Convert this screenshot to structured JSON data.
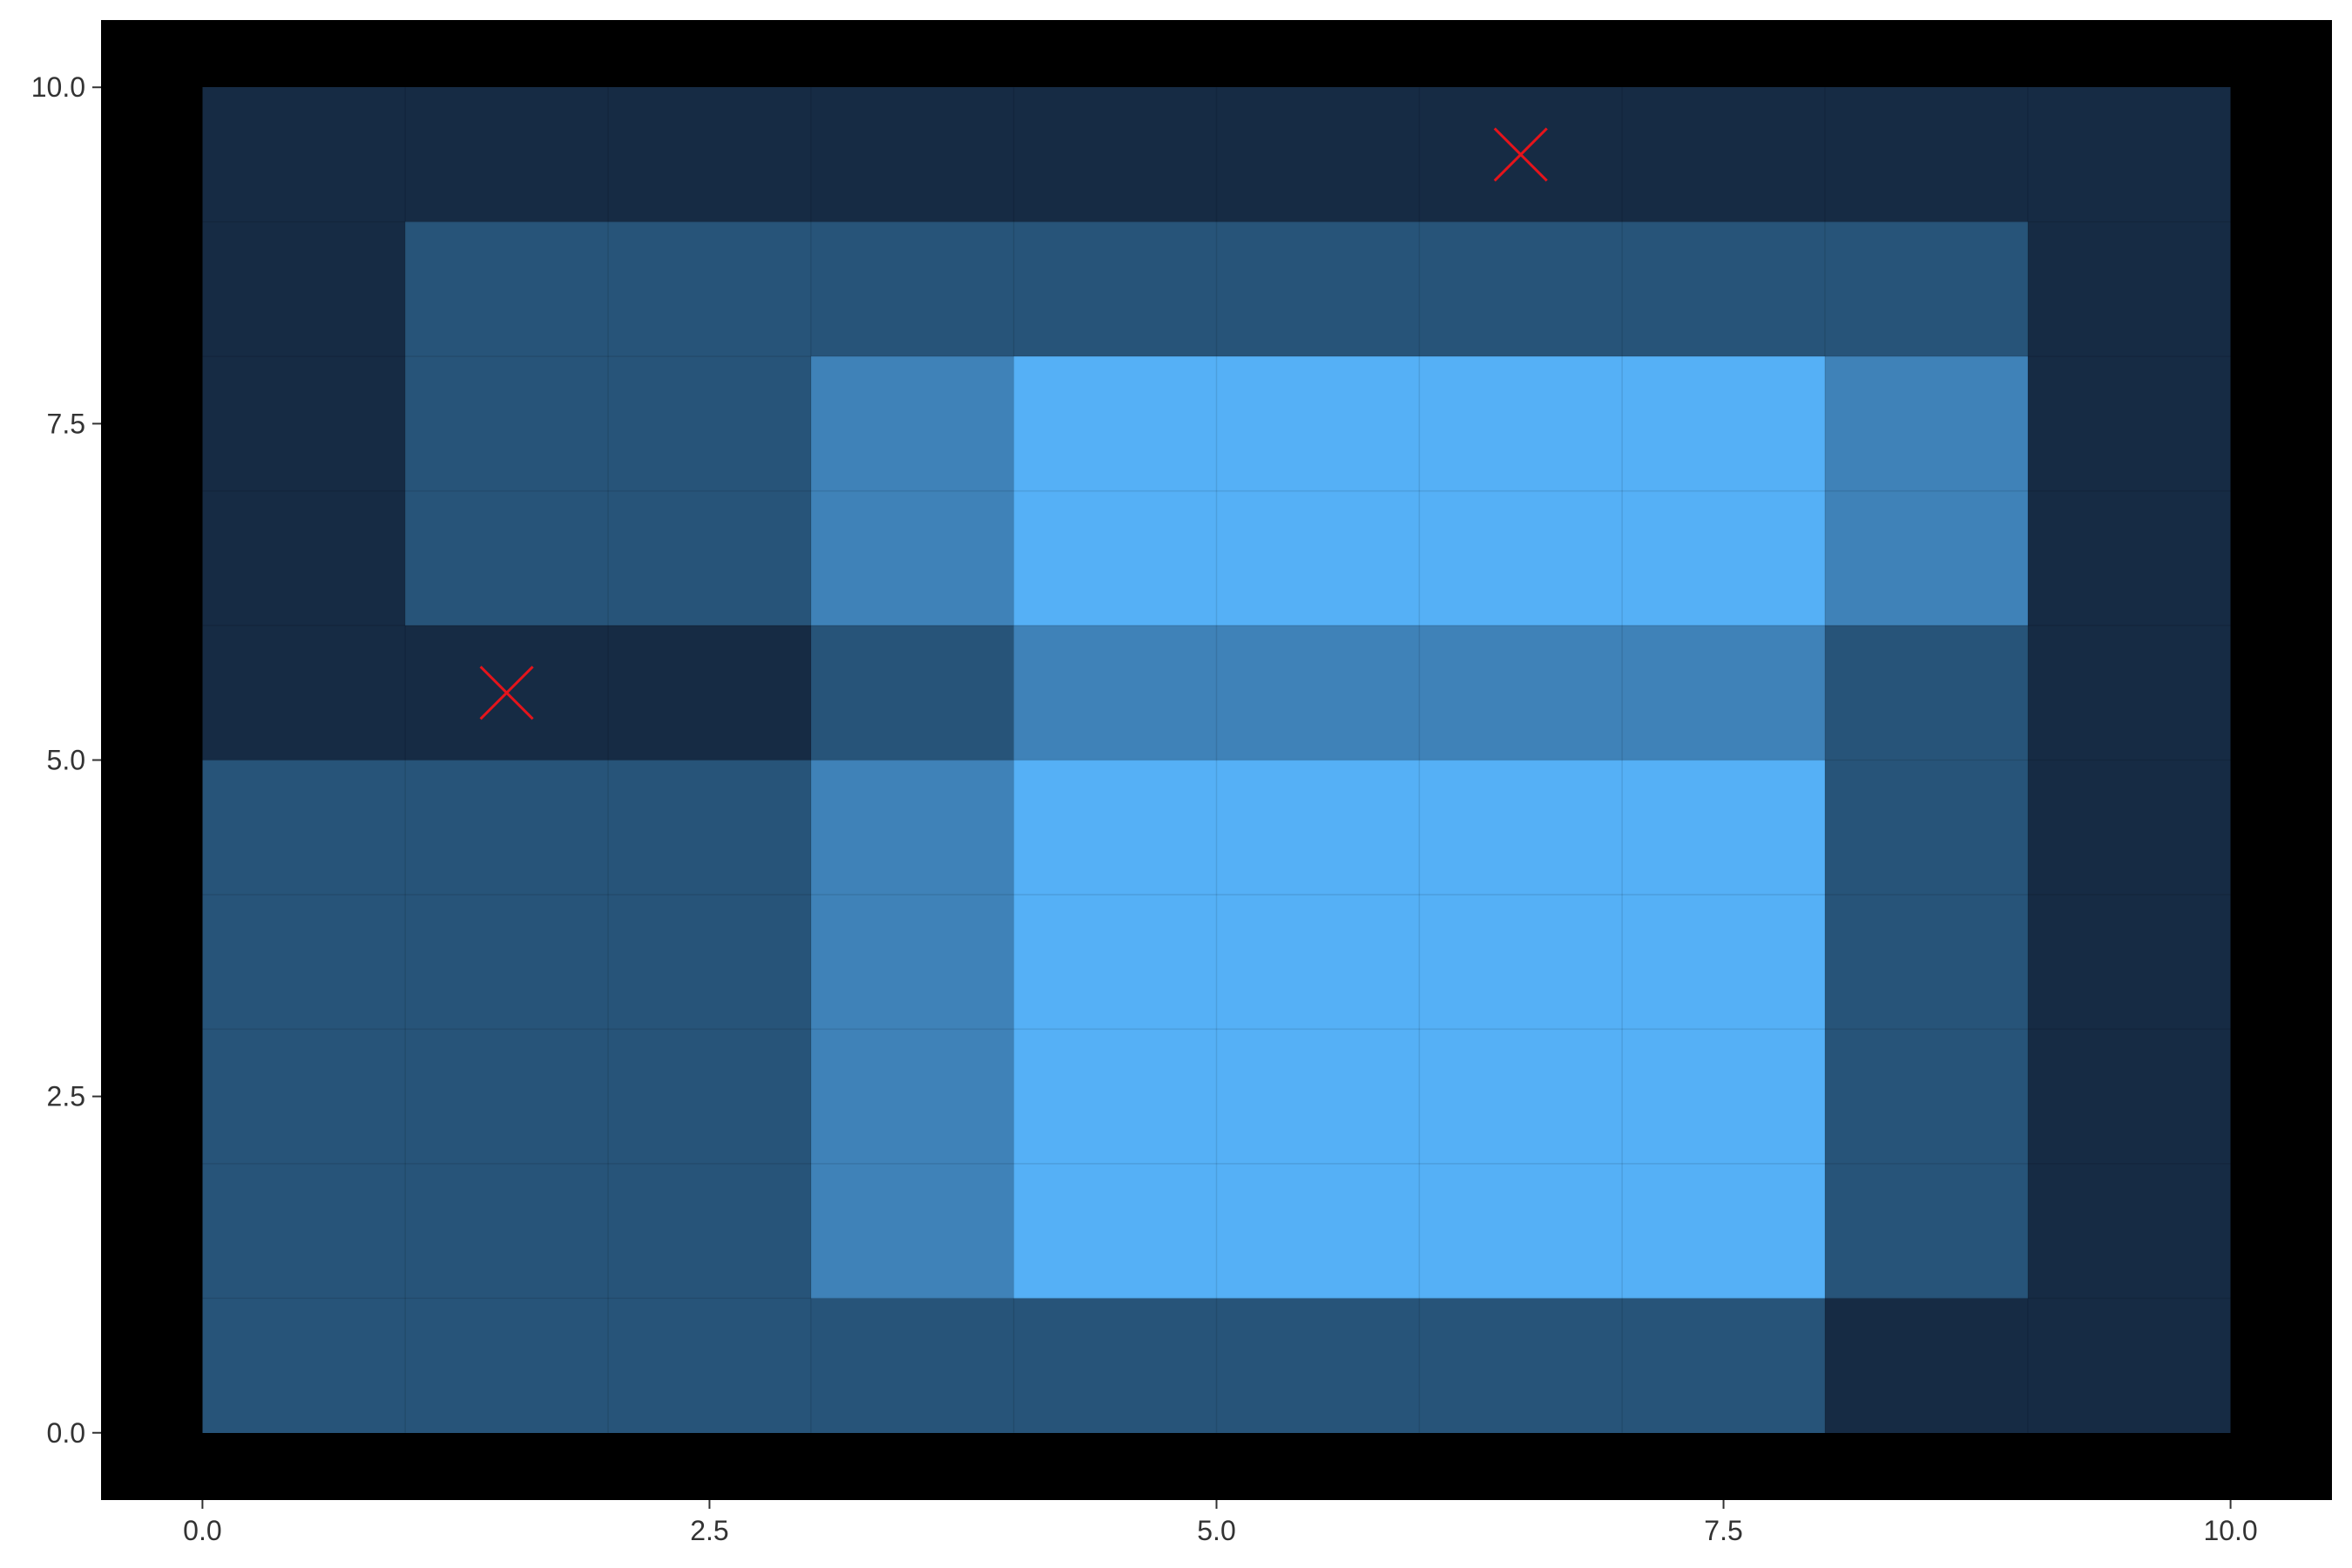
{
  "chart_data": {
    "type": "heatmap",
    "title": "",
    "xlabel": "",
    "ylabel": "",
    "xlim": [
      -0.5,
      10.5
    ],
    "ylim": [
      -0.5,
      10.5
    ],
    "x_ticks": [
      0.0,
      2.5,
      5.0,
      7.5,
      10.0
    ],
    "y_ticks": [
      0.0,
      2.5,
      5.0,
      7.5,
      10.0
    ],
    "x_tick_labels": [
      "0.0",
      "2.5",
      "5.0",
      "7.5",
      "10.0"
    ],
    "y_tick_labels": [
      "0.0",
      "2.5",
      "5.0",
      "7.5",
      "10.0"
    ],
    "grid": false,
    "cell_x_range": [
      0,
      10
    ],
    "cell_y_range": [
      0,
      10
    ],
    "levels_rows_top_to_bottom": [
      [
        0,
        0,
        0,
        0,
        0,
        0,
        0,
        0,
        0,
        0
      ],
      [
        0,
        1,
        1,
        1,
        1,
        1,
        1,
        1,
        1,
        0
      ],
      [
        0,
        1,
        1,
        2,
        3,
        3,
        3,
        3,
        2,
        0
      ],
      [
        0,
        1,
        1,
        2,
        3,
        3,
        3,
        3,
        2,
        0
      ],
      [
        0,
        0,
        0,
        1,
        2,
        2,
        2,
        2,
        1,
        0
      ],
      [
        1,
        1,
        1,
        2,
        3,
        3,
        3,
        3,
        1,
        0
      ],
      [
        1,
        1,
        1,
        2,
        3,
        3,
        3,
        3,
        1,
        0
      ],
      [
        1,
        1,
        1,
        2,
        3,
        3,
        3,
        3,
        1,
        0
      ],
      [
        1,
        1,
        1,
        2,
        3,
        3,
        3,
        3,
        1,
        0
      ],
      [
        1,
        1,
        1,
        1,
        1,
        1,
        1,
        1,
        0,
        0
      ]
    ],
    "level_colors": [
      "#162b44",
      "#275479",
      "#3f82b8",
      "#55b0f6"
    ],
    "panel_background": "#000000",
    "markers": [
      {
        "x": 1.5,
        "y": 5.5,
        "symbol": "x",
        "color": "#e4141b"
      },
      {
        "x": 6.5,
        "y": 9.5,
        "symbol": "x",
        "color": "#e4141b"
      }
    ]
  }
}
